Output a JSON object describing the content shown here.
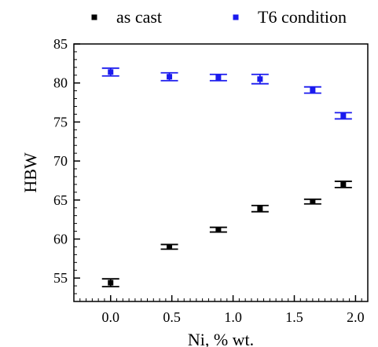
{
  "chart_data": {
    "type": "scatter",
    "xlabel": "Ni, % wt.",
    "ylabel": "HBW",
    "xlim": [
      -0.3,
      2.1
    ],
    "ylim": [
      52,
      85
    ],
    "xticks": [
      0.0,
      0.5,
      1.0,
      1.5,
      2.0
    ],
    "xtick_labels": [
      "0.0",
      "0.5",
      "1.0",
      "1.5",
      "2.0"
    ],
    "yticks": [
      55,
      60,
      65,
      70,
      75,
      80,
      85
    ],
    "ytick_labels": [
      "55",
      "60",
      "65",
      "70",
      "75",
      "80",
      "85"
    ],
    "legend_position": "top",
    "series": [
      {
        "name": "as cast",
        "color": "#000000",
        "x": [
          0.0,
          0.48,
          0.88,
          1.22,
          1.65,
          1.9
        ],
        "y": [
          54.4,
          59.0,
          61.2,
          63.9,
          64.8,
          67.0
        ],
        "error": [
          0.5,
          0.3,
          0.3,
          0.4,
          0.3,
          0.4
        ]
      },
      {
        "name": "T6 condition",
        "color": "#1a1aee",
        "x": [
          0.0,
          0.48,
          0.88,
          1.22,
          1.65,
          1.9
        ],
        "y": [
          81.4,
          80.8,
          80.7,
          80.5,
          79.1,
          75.8
        ],
        "error": [
          0.5,
          0.5,
          0.4,
          0.6,
          0.4,
          0.4
        ]
      }
    ]
  }
}
